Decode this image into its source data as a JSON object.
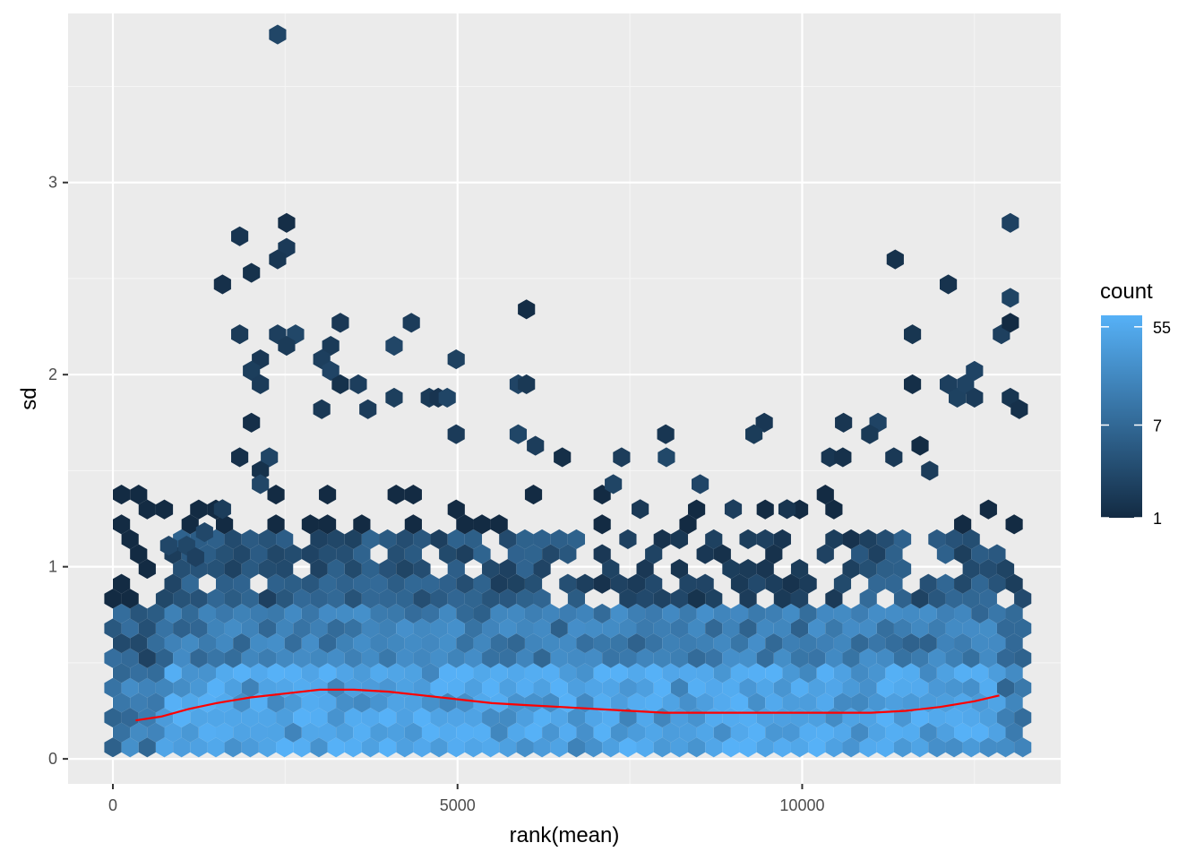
{
  "chart_data": {
    "type": "hexbin",
    "title": "",
    "xlabel": "rank(mean)",
    "ylabel": "sd",
    "xlim": [
      -650,
      13750
    ],
    "ylim": [
      -0.13,
      3.88
    ],
    "x_ticks": [
      0,
      5000,
      10000
    ],
    "x_tick_labels": [
      "0",
      "5000",
      "10000"
    ],
    "y_ticks": [
      0,
      1,
      2,
      3
    ],
    "y_tick_labels": [
      "0",
      "1",
      "2",
      "3"
    ],
    "grid": true,
    "background": "#ebebeb",
    "legend": {
      "title": "count",
      "position": "right",
      "scale": "log",
      "range": [
        1,
        70
      ],
      "breaks": [
        1,
        7,
        55
      ],
      "labels": [
        "1",
        "7",
        "55"
      ],
      "color_low": "#132b43",
      "color_high": "#56b1f7"
    },
    "hexbin": {
      "x_range": [
        0,
        13200
      ],
      "bins": 53,
      "density_profile": [
        {
          "ymax": 0.45,
          "base_count": 45
        },
        {
          "ymax": 0.8,
          "base_count": 15
        },
        {
          "ymax": 1.15,
          "base_count": 5
        }
      ],
      "outlier_points": [
        [
          2390,
          3.77
        ],
        [
          1840,
          2.72
        ],
        [
          2520,
          2.79
        ],
        [
          2520,
          2.66
        ],
        [
          2390,
          2.6
        ],
        [
          1590,
          2.47
        ],
        [
          2010,
          2.53
        ],
        [
          1840,
          2.21
        ],
        [
          2390,
          2.21
        ],
        [
          2650,
          2.21
        ],
        [
          2520,
          2.15
        ],
        [
          3300,
          2.27
        ],
        [
          3160,
          2.15
        ],
        [
          3030,
          2.08
        ],
        [
          4330,
          2.27
        ],
        [
          4080,
          2.15
        ],
        [
          6000,
          2.34
        ],
        [
          4980,
          2.08
        ],
        [
          2140,
          2.08
        ],
        [
          2010,
          2.02
        ],
        [
          2140,
          1.95
        ],
        [
          3160,
          2.02
        ],
        [
          3300,
          1.95
        ],
        [
          3560,
          1.95
        ],
        [
          5880,
          1.95
        ],
        [
          6000,
          1.95
        ],
        [
          4590,
          1.88
        ],
        [
          4720,
          1.88
        ],
        [
          4850,
          1.88
        ],
        [
          4080,
          1.88
        ],
        [
          3030,
          1.82
        ],
        [
          3700,
          1.82
        ],
        [
          2010,
          1.75
        ],
        [
          5880,
          1.69
        ],
        [
          4980,
          1.69
        ],
        [
          7380,
          1.57
        ],
        [
          8020,
          1.69
        ],
        [
          9450,
          1.75
        ],
        [
          9300,
          1.69
        ],
        [
          10600,
          1.75
        ],
        [
          11100,
          1.75
        ],
        [
          10980,
          1.69
        ],
        [
          11350,
          2.6
        ],
        [
          11600,
          2.21
        ],
        [
          12120,
          2.47
        ],
        [
          11600,
          1.95
        ],
        [
          12120,
          1.95
        ],
        [
          12250,
          1.88
        ],
        [
          12370,
          1.95
        ],
        [
          12500,
          2.02
        ],
        [
          12500,
          1.88
        ],
        [
          12890,
          2.21
        ],
        [
          13020,
          2.27
        ],
        [
          13020,
          2.4
        ],
        [
          13020,
          2.79
        ],
        [
          13020,
          1.88
        ],
        [
          13150,
          1.82
        ],
        [
          1840,
          1.57
        ],
        [
          2270,
          1.57
        ],
        [
          2140,
          1.5
        ],
        [
          2140,
          1.43
        ],
        [
          1590,
          1.3
        ],
        [
          1330,
          1.18
        ],
        [
          1070,
          1.11
        ],
        [
          810,
          1.11
        ],
        [
          1200,
          1.05
        ],
        [
          6130,
          1.63
        ],
        [
          6520,
          1.57
        ],
        [
          8030,
          1.57
        ],
        [
          10400,
          1.57
        ],
        [
          10590,
          1.57
        ],
        [
          11330,
          1.57
        ],
        [
          11710,
          1.63
        ],
        [
          9780,
          1.3
        ],
        [
          9000,
          1.3
        ],
        [
          7260,
          1.43
        ],
        [
          7650,
          1.3
        ],
        [
          11850,
          1.5
        ],
        [
          8520,
          1.43
        ],
        [
          3300,
          2.27
        ]
      ]
    },
    "smooth_line": {
      "color": "#ff0000",
      "points": [
        [
          330,
          0.2
        ],
        [
          700,
          0.22
        ],
        [
          1100,
          0.26
        ],
        [
          1500,
          0.29
        ],
        [
          2000,
          0.32
        ],
        [
          2500,
          0.34
        ],
        [
          3000,
          0.36
        ],
        [
          3500,
          0.36
        ],
        [
          4000,
          0.35
        ],
        [
          4500,
          0.33
        ],
        [
          5000,
          0.31
        ],
        [
          5500,
          0.29
        ],
        [
          6000,
          0.28
        ],
        [
          6500,
          0.27
        ],
        [
          7000,
          0.26
        ],
        [
          7500,
          0.25
        ],
        [
          8000,
          0.24
        ],
        [
          8500,
          0.24
        ],
        [
          9000,
          0.24
        ],
        [
          9500,
          0.24
        ],
        [
          10000,
          0.24
        ],
        [
          10500,
          0.24
        ],
        [
          11000,
          0.24
        ],
        [
          11500,
          0.25
        ],
        [
          12000,
          0.27
        ],
        [
          12500,
          0.3
        ],
        [
          12860,
          0.33
        ]
      ]
    }
  }
}
